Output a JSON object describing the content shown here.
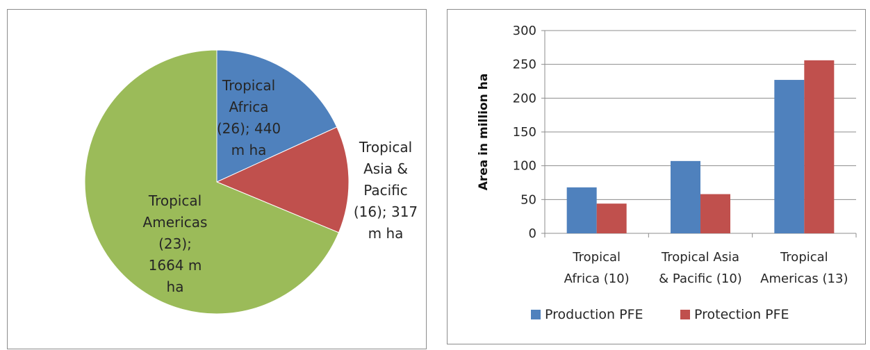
{
  "chart_data": [
    {
      "type": "pie",
      "title": "",
      "slices": [
        {
          "label_lines": [
            "Tropical",
            "Africa",
            "(26); 440",
            "m ha"
          ],
          "value": 440,
          "color": "#4f81bd"
        },
        {
          "label_lines": [
            "Tropical",
            "Asia &",
            "Pacific",
            "(16); 317",
            "m ha"
          ],
          "value": 317,
          "color": "#c0504d"
        },
        {
          "label_lines": [
            "Tropical",
            "Americas",
            "(23);",
            "1664 m",
            "ha"
          ],
          "value": 1664,
          "color": "#9bbb59"
        }
      ],
      "start_angle": "12 o'clock",
      "direction": "clockwise"
    },
    {
      "type": "bar",
      "title": "",
      "categories": [
        [
          "Tropical",
          "Africa (10)"
        ],
        [
          "Tropical Asia",
          "& Pacific (10)"
        ],
        [
          "Tropical",
          "Americas (13)"
        ]
      ],
      "series": [
        {
          "name": "Production PFE",
          "values": [
            68,
            107,
            227
          ],
          "color": "#4f81bd"
        },
        {
          "name": "Protection PFE",
          "values": [
            44,
            58,
            256
          ],
          "color": "#c0504d"
        }
      ],
      "xlabel": "",
      "ylabel": "Area in million ha",
      "ylim": [
        0,
        300
      ],
      "yticks": [
        0,
        50,
        100,
        150,
        200,
        250,
        300
      ],
      "grid": true,
      "legend": "bottom"
    }
  ]
}
